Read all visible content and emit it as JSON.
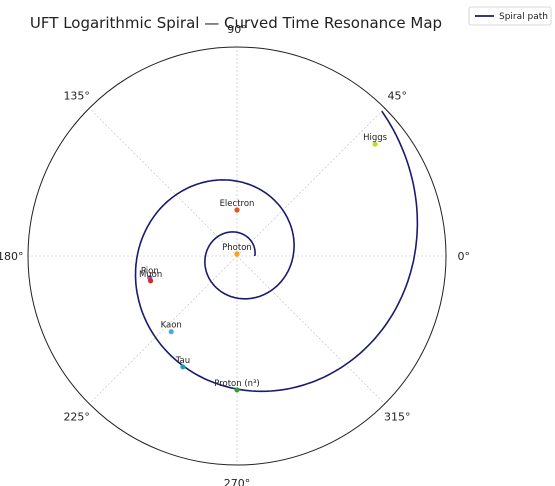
{
  "chart_data": {
    "type": "polar-line",
    "title": "UFT Logarithmic Spiral — Curved Time Resonance Map",
    "angle_ticks": [
      {
        "deg": 0,
        "label": "0°"
      },
      {
        "deg": 45,
        "label": "45°"
      },
      {
        "deg": 90,
        "label": "90°"
      },
      {
        "deg": 135,
        "label": "135°"
      },
      {
        "deg": 180,
        "label": "180°"
      },
      {
        "deg": 225,
        "label": "225°"
      },
      {
        "deg": 270,
        "label": "270°"
      },
      {
        "deg": 315,
        "label": "315°"
      }
    ],
    "radial_max": 1.0,
    "grid": true,
    "legend": {
      "position": "top-right",
      "entries": [
        {
          "name": "Spiral path",
          "color": "#1a1a6e"
        }
      ]
    },
    "series": [
      {
        "name": "Spiral path",
        "color": "#1a1a6e",
        "spiral": {
          "theta_start_deg": 0,
          "theta_end_deg": 765,
          "r_start": 0.085,
          "r_end": 0.98
        }
      }
    ],
    "points": [
      {
        "label": "Photon",
        "theta_deg": 90,
        "r": 0.01,
        "color": "#ff9f1c"
      },
      {
        "label": "Electron",
        "theta_deg": 90,
        "r": 0.22,
        "color": "#e8541e"
      },
      {
        "label": "Pion",
        "theta_deg": 194,
        "r": 0.43,
        "color": "#9b59b6"
      },
      {
        "label": "Muon",
        "theta_deg": 196,
        "r": 0.43,
        "color": "#d62728"
      },
      {
        "label": "Kaon",
        "theta_deg": 229,
        "r": 0.48,
        "color": "#4ea8de"
      },
      {
        "label": "Tau",
        "theta_deg": 244,
        "r": 0.59,
        "color": "#17a2b8"
      },
      {
        "label": "Proton (n³)",
        "theta_deg": 270,
        "r": 0.64,
        "color": "#2ca02c"
      },
      {
        "label": "Higgs",
        "theta_deg": 39,
        "r": 0.85,
        "color": "#c5d82c"
      }
    ]
  }
}
